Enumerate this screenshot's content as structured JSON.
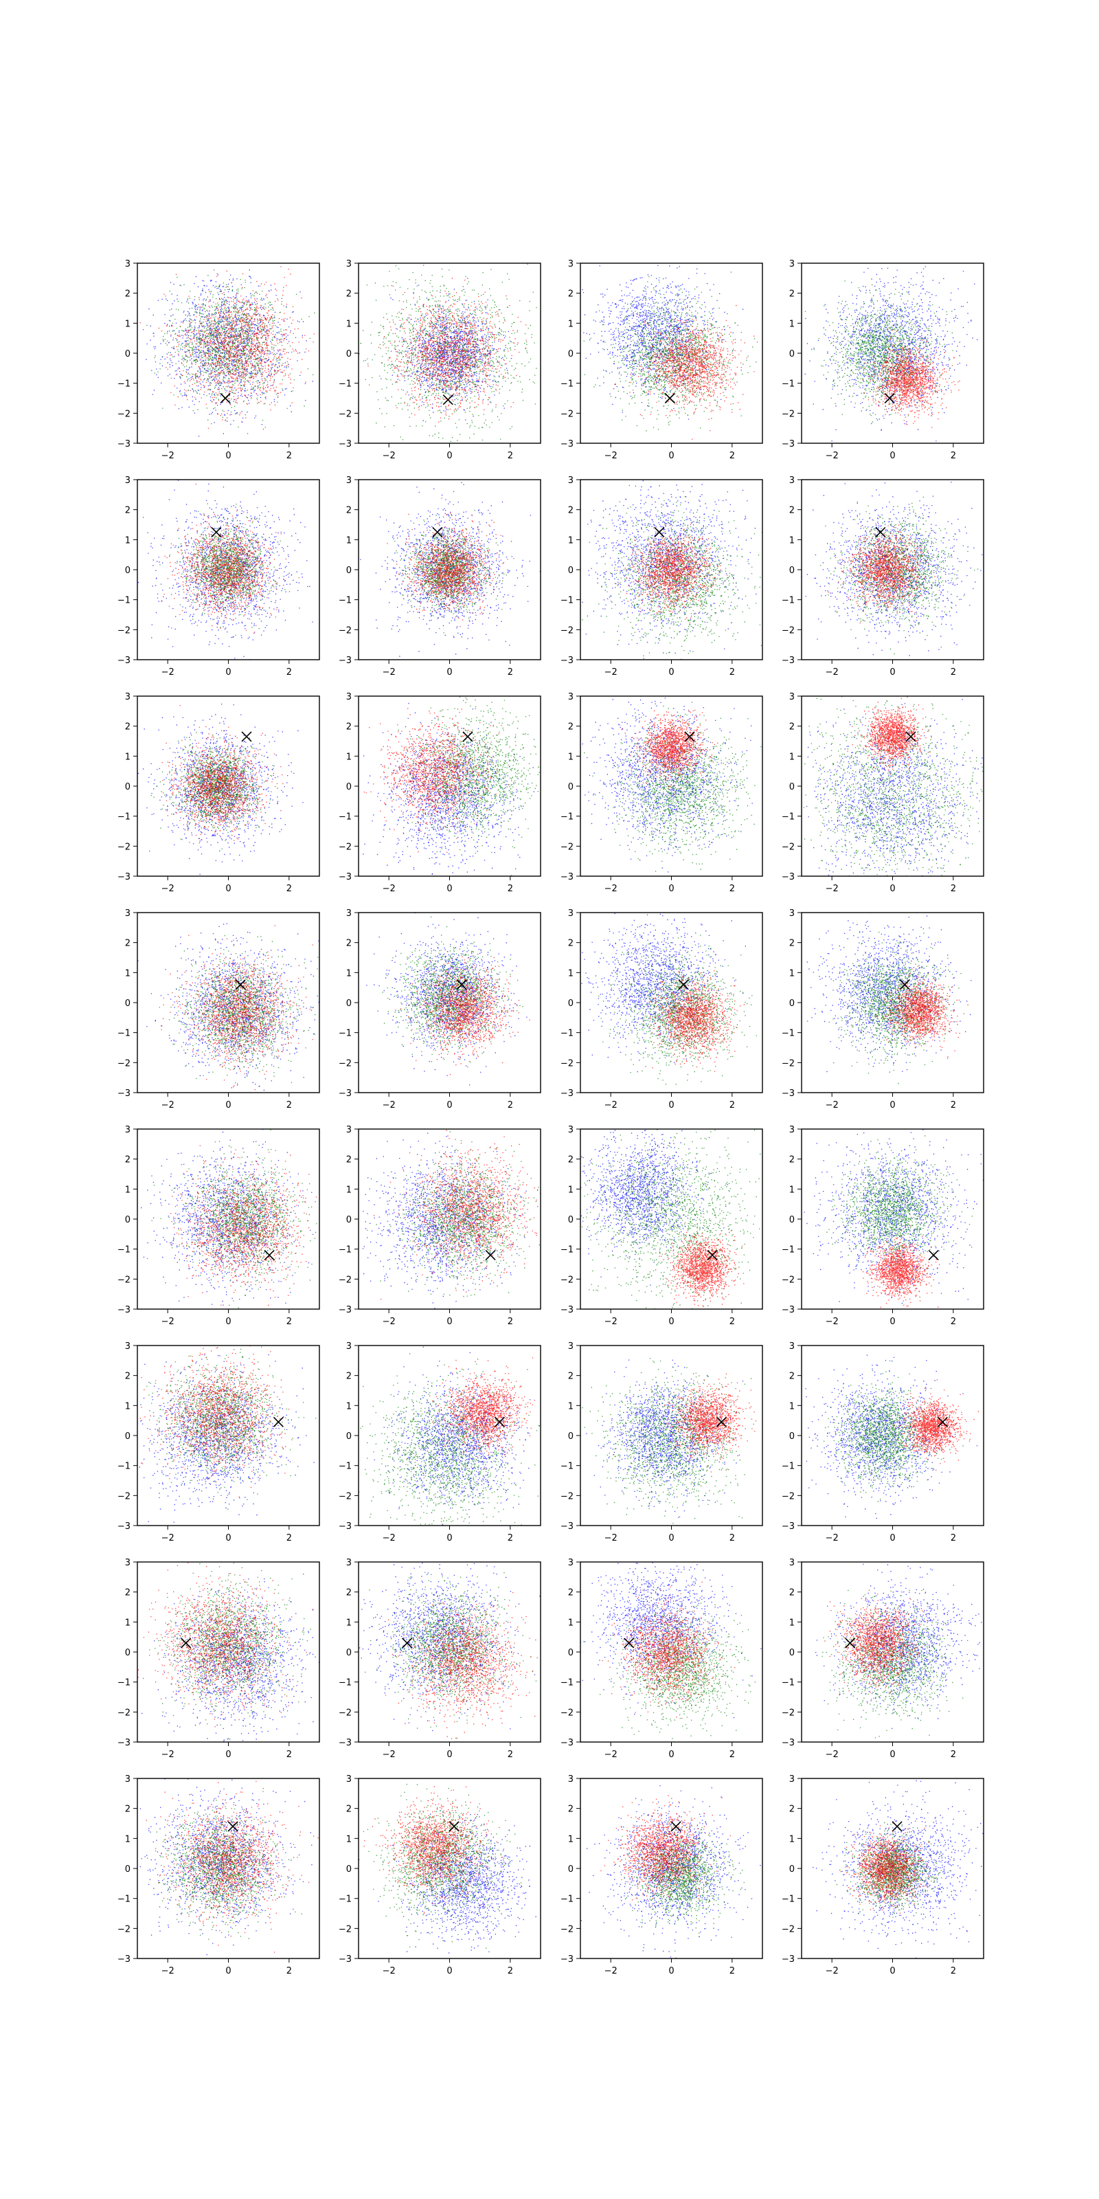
{
  "figure": {
    "rows": 8,
    "cols": 4
  },
  "chart_data": {
    "type": "scatter",
    "title": "",
    "xlabel": "",
    "ylabel": "",
    "xlim": [
      -3,
      3
    ],
    "ylim": [
      -3,
      3
    ],
    "xticks": [
      -2,
      0,
      2
    ],
    "yticks": [
      -3,
      -2,
      -1,
      0,
      1,
      2,
      3
    ],
    "grid": false,
    "legend": "none",
    "marker_symbol": "×",
    "colors": {
      "blue": "#0000ff",
      "green": "#008000",
      "red": "#ff0000",
      "marker": "#000000"
    },
    "series_order": [
      "blue",
      "green",
      "red"
    ],
    "panels": [
      {
        "row": 0,
        "col": 0,
        "marker": [
          -0.1,
          -1.5
        ],
        "clouds": {
          "blue": {
            "center": [
              -0.1,
              0.3
            ],
            "spread": 1.0
          },
          "green": {
            "center": [
              0.0,
              0.3
            ],
            "spread": 0.9
          },
          "red": {
            "center": [
              0.3,
              0.2
            ],
            "spread": 0.9
          }
        }
      },
      {
        "row": 0,
        "col": 1,
        "marker": [
          -0.05,
          -1.55
        ],
        "clouds": {
          "blue": {
            "center": [
              0.0,
              0.0
            ],
            "spread": 0.7
          },
          "green": {
            "center": [
              0.0,
              0.0
            ],
            "spread": 1.2
          },
          "red": {
            "center": [
              0.0,
              0.0
            ],
            "spread": 0.85
          }
        }
      },
      {
        "row": 0,
        "col": 2,
        "marker": [
          -0.05,
          -1.5
        ],
        "clouds": {
          "blue": {
            "center": [
              -0.5,
              0.6
            ],
            "spread": 0.9
          },
          "green": {
            "center": [
              0.0,
              -0.1
            ],
            "spread": 0.9
          },
          "red": {
            "center": [
              0.6,
              -0.4
            ],
            "spread": 0.65
          }
        }
      },
      {
        "row": 0,
        "col": 3,
        "marker": [
          -0.1,
          -1.5
        ],
        "clouds": {
          "blue": {
            "center": [
              0.0,
              0.3
            ],
            "spread": 1.0
          },
          "green": {
            "center": [
              -0.3,
              0.0
            ],
            "spread": 0.8
          },
          "red": {
            "center": [
              0.5,
              -0.9
            ],
            "spread": 0.5
          }
        }
      },
      {
        "row": 1,
        "col": 0,
        "marker": [
          -0.4,
          1.25
        ],
        "clouds": {
          "blue": {
            "center": [
              0.0,
              0.0
            ],
            "spread": 1.0
          },
          "green": {
            "center": [
              -0.1,
              0.1
            ],
            "spread": 0.6
          },
          "red": {
            "center": [
              -0.1,
              0.0
            ],
            "spread": 0.7
          }
        }
      },
      {
        "row": 1,
        "col": 1,
        "marker": [
          -0.4,
          1.25
        ],
        "clouds": {
          "blue": {
            "center": [
              0.0,
              0.0
            ],
            "spread": 0.9
          },
          "green": {
            "center": [
              -0.1,
              0.0
            ],
            "spread": 0.6
          },
          "red": {
            "center": [
              0.0,
              0.0
            ],
            "spread": 0.6
          }
        }
      },
      {
        "row": 1,
        "col": 2,
        "marker": [
          -0.4,
          1.25
        ],
        "clouds": {
          "blue": {
            "center": [
              -0.3,
              0.4
            ],
            "spread": 1.1
          },
          "green": {
            "center": [
              0.2,
              -0.3
            ],
            "spread": 0.95
          },
          "red": {
            "center": [
              0.0,
              0.0
            ],
            "spread": 0.55
          }
        }
      },
      {
        "row": 1,
        "col": 3,
        "marker": [
          -0.4,
          1.25
        ],
        "clouds": {
          "blue": {
            "center": [
              0.0,
              0.0
            ],
            "spread": 1.0
          },
          "green": {
            "center": [
              0.1,
              0.0
            ],
            "spread": 0.8
          },
          "red": {
            "center": [
              -0.2,
              0.0
            ],
            "spread": 0.55
          }
        }
      },
      {
        "row": 2,
        "col": 0,
        "marker": [
          0.6,
          1.65
        ],
        "clouds": {
          "blue": {
            "center": [
              -0.3,
              0.0
            ],
            "spread": 0.9
          },
          "green": {
            "center": [
              -0.4,
              0.0
            ],
            "spread": 0.6
          },
          "red": {
            "center": [
              -0.3,
              0.0
            ],
            "spread": 0.65
          }
        }
      },
      {
        "row": 2,
        "col": 1,
        "marker": [
          0.6,
          1.65
        ],
        "clouds": {
          "blue": {
            "center": [
              0.0,
              -0.3
            ],
            "spread": 1.0
          },
          "green": {
            "center": [
              0.8,
              0.4
            ],
            "spread": 0.9
          },
          "red": {
            "center": [
              -0.5,
              0.5
            ],
            "spread": 0.75
          }
        }
      },
      {
        "row": 2,
        "col": 2,
        "marker": [
          0.6,
          1.65
        ],
        "clouds": {
          "blue": {
            "center": [
              -0.3,
              0.3
            ],
            "spread": 1.0
          },
          "green": {
            "center": [
              0.3,
              -0.1
            ],
            "spread": 0.95
          },
          "red": {
            "center": [
              0.0,
              1.3
            ],
            "spread": 0.45
          }
        }
      },
      {
        "row": 2,
        "col": 3,
        "marker": [
          0.6,
          1.65
        ],
        "clouds": {
          "blue": {
            "center": [
              0.0,
              -0.4
            ],
            "spread": 1.2
          },
          "green": {
            "center": [
              0.0,
              -0.3
            ],
            "spread": 1.35
          },
          "red": {
            "center": [
              0.0,
              1.7
            ],
            "spread": 0.4
          }
        }
      },
      {
        "row": 3,
        "col": 0,
        "marker": [
          0.4,
          0.6
        ],
        "clouds": {
          "blue": {
            "center": [
              0.3,
              -0.2
            ],
            "spread": 1.0
          },
          "green": {
            "center": [
              0.3,
              -0.3
            ],
            "spread": 0.8
          },
          "red": {
            "center": [
              0.4,
              -0.3
            ],
            "spread": 0.8
          }
        }
      },
      {
        "row": 3,
        "col": 1,
        "marker": [
          0.4,
          0.6
        ],
        "clouds": {
          "blue": {
            "center": [
              0.0,
              0.3
            ],
            "spread": 0.85
          },
          "green": {
            "center": [
              0.0,
              0.2
            ],
            "spread": 0.75
          },
          "red": {
            "center": [
              0.5,
              -0.2
            ],
            "spread": 0.65
          }
        }
      },
      {
        "row": 3,
        "col": 2,
        "marker": [
          0.4,
          0.6
        ],
        "clouds": {
          "blue": {
            "center": [
              -0.5,
              0.6
            ],
            "spread": 0.95
          },
          "green": {
            "center": [
              0.3,
              -0.3
            ],
            "spread": 0.85
          },
          "red": {
            "center": [
              0.7,
              -0.5
            ],
            "spread": 0.55
          }
        }
      },
      {
        "row": 3,
        "col": 3,
        "marker": [
          0.4,
          0.6
        ],
        "clouds": {
          "blue": {
            "center": [
              -0.2,
              0.4
            ],
            "spread": 0.95
          },
          "green": {
            "center": [
              0.0,
              0.0
            ],
            "spread": 0.75
          },
          "red": {
            "center": [
              0.9,
              -0.3
            ],
            "spread": 0.45
          }
        }
      },
      {
        "row": 4,
        "col": 0,
        "marker": [
          1.35,
          -1.2
        ],
        "clouds": {
          "blue": {
            "center": [
              0.0,
              0.0
            ],
            "spread": 1.0
          },
          "green": {
            "center": [
              0.5,
              0.0
            ],
            "spread": 0.85
          },
          "red": {
            "center": [
              0.5,
              -0.3
            ],
            "spread": 0.9
          }
        }
      },
      {
        "row": 4,
        "col": 1,
        "marker": [
          1.35,
          -1.2
        ],
        "clouds": {
          "blue": {
            "center": [
              -0.3,
              0.0
            ],
            "spread": 1.0
          },
          "green": {
            "center": [
              0.4,
              0.0
            ],
            "spread": 0.9
          },
          "red": {
            "center": [
              0.7,
              0.3
            ],
            "spread": 0.85
          }
        }
      },
      {
        "row": 4,
        "col": 2,
        "marker": [
          1.35,
          -1.2
        ],
        "clouds": {
          "blue": {
            "center": [
              -1.0,
              0.9
            ],
            "spread": 0.85
          },
          "green": {
            "center": [
              0.0,
              0.0
            ],
            "spread": 1.25
          },
          "red": {
            "center": [
              1.0,
              -1.6
            ],
            "spread": 0.45
          }
        }
      },
      {
        "row": 4,
        "col": 3,
        "marker": [
          1.35,
          -1.2
        ],
        "clouds": {
          "blue": {
            "center": [
              0.0,
              0.2
            ],
            "spread": 1.05
          },
          "green": {
            "center": [
              0.0,
              0.3
            ],
            "spread": 0.75
          },
          "red": {
            "center": [
              0.2,
              -1.7
            ],
            "spread": 0.4
          }
        }
      },
      {
        "row": 5,
        "col": 0,
        "marker": [
          1.65,
          0.45
        ],
        "clouds": {
          "blue": {
            "center": [
              -0.4,
              0.0
            ],
            "spread": 1.0
          },
          "green": {
            "center": [
              -0.3,
              0.5
            ],
            "spread": 0.85
          },
          "red": {
            "center": [
              -0.3,
              0.7
            ],
            "spread": 0.85
          }
        }
      },
      {
        "row": 5,
        "col": 1,
        "marker": [
          1.65,
          0.45
        ],
        "clouds": {
          "blue": {
            "center": [
              0.2,
              -0.2
            ],
            "spread": 0.9
          },
          "green": {
            "center": [
              -0.3,
              -0.6
            ],
            "spread": 1.1
          },
          "red": {
            "center": [
              1.1,
              0.8
            ],
            "spread": 0.55
          }
        }
      },
      {
        "row": 5,
        "col": 2,
        "marker": [
          1.65,
          0.45
        ],
        "clouds": {
          "blue": {
            "center": [
              -0.3,
              0.0
            ],
            "spread": 0.85
          },
          "green": {
            "center": [
              0.0,
              -0.2
            ],
            "spread": 1.0
          },
          "red": {
            "center": [
              1.2,
              0.5
            ],
            "spread": 0.5
          }
        }
      },
      {
        "row": 5,
        "col": 3,
        "marker": [
          1.65,
          0.45
        ],
        "clouds": {
          "blue": {
            "center": [
              -0.4,
              0.0
            ],
            "spread": 0.9
          },
          "green": {
            "center": [
              -0.3,
              0.0
            ],
            "spread": 0.7
          },
          "red": {
            "center": [
              1.3,
              0.3
            ],
            "spread": 0.4
          }
        }
      },
      {
        "row": 6,
        "col": 0,
        "marker": [
          -1.4,
          0.3
        ],
        "clouds": {
          "blue": {
            "center": [
              0.3,
              -0.3
            ],
            "spread": 1.0
          },
          "green": {
            "center": [
              0.0,
              0.3
            ],
            "spread": 0.9
          },
          "red": {
            "center": [
              -0.3,
              0.3
            ],
            "spread": 0.9
          }
        }
      },
      {
        "row": 6,
        "col": 1,
        "marker": [
          -1.4,
          0.3
        ],
        "clouds": {
          "blue": {
            "center": [
              -0.3,
              0.5
            ],
            "spread": 1.0
          },
          "green": {
            "center": [
              0.0,
              0.2
            ],
            "spread": 0.85
          },
          "red": {
            "center": [
              0.5,
              -0.3
            ],
            "spread": 0.8
          }
        }
      },
      {
        "row": 6,
        "col": 2,
        "marker": [
          -1.4,
          0.3
        ],
        "clouds": {
          "blue": {
            "center": [
              -0.4,
              1.0
            ],
            "spread": 0.95
          },
          "green": {
            "center": [
              0.3,
              -0.6
            ],
            "spread": 0.85
          },
          "red": {
            "center": [
              -0.1,
              0.0
            ],
            "spread": 0.65
          }
        }
      },
      {
        "row": 6,
        "col": 3,
        "marker": [
          -1.4,
          0.3
        ],
        "clouds": {
          "blue": {
            "center": [
              0.3,
              0.3
            ],
            "spread": 0.95
          },
          "green": {
            "center": [
              0.0,
              -0.3
            ],
            "spread": 0.85
          },
          "red": {
            "center": [
              -0.5,
              0.3
            ],
            "spread": 0.55
          }
        }
      },
      {
        "row": 7,
        "col": 0,
        "marker": [
          0.15,
          1.4
        ],
        "clouds": {
          "blue": {
            "center": [
              -0.3,
              0.3
            ],
            "spread": 1.0
          },
          "green": {
            "center": [
              -0.3,
              0.0
            ],
            "spread": 0.8
          },
          "red": {
            "center": [
              0.0,
              0.3
            ],
            "spread": 0.85
          }
        }
      },
      {
        "row": 7,
        "col": 1,
        "marker": [
          0.15,
          1.4
        ],
        "clouds": {
          "blue": {
            "center": [
              0.5,
              -0.5
            ],
            "spread": 0.85
          },
          "green": {
            "center": [
              -0.3,
              0.2
            ],
            "spread": 0.85
          },
          "red": {
            "center": [
              -0.5,
              0.7
            ],
            "spread": 0.7
          }
        }
      },
      {
        "row": 7,
        "col": 2,
        "marker": [
          0.15,
          1.4
        ],
        "clouds": {
          "blue": {
            "center": [
              0.0,
              0.0
            ],
            "spread": 0.95
          },
          "green": {
            "center": [
              0.3,
              -0.2
            ],
            "spread": 0.65
          },
          "red": {
            "center": [
              -0.3,
              0.6
            ],
            "spread": 0.6
          }
        }
      },
      {
        "row": 7,
        "col": 3,
        "marker": [
          0.15,
          1.4
        ],
        "clouds": {
          "blue": {
            "center": [
              0.3,
              0.0
            ],
            "spread": 1.0
          },
          "green": {
            "center": [
              0.0,
              -0.1
            ],
            "spread": 0.55
          },
          "red": {
            "center": [
              -0.2,
              0.0
            ],
            "spread": 0.5
          }
        }
      }
    ]
  }
}
